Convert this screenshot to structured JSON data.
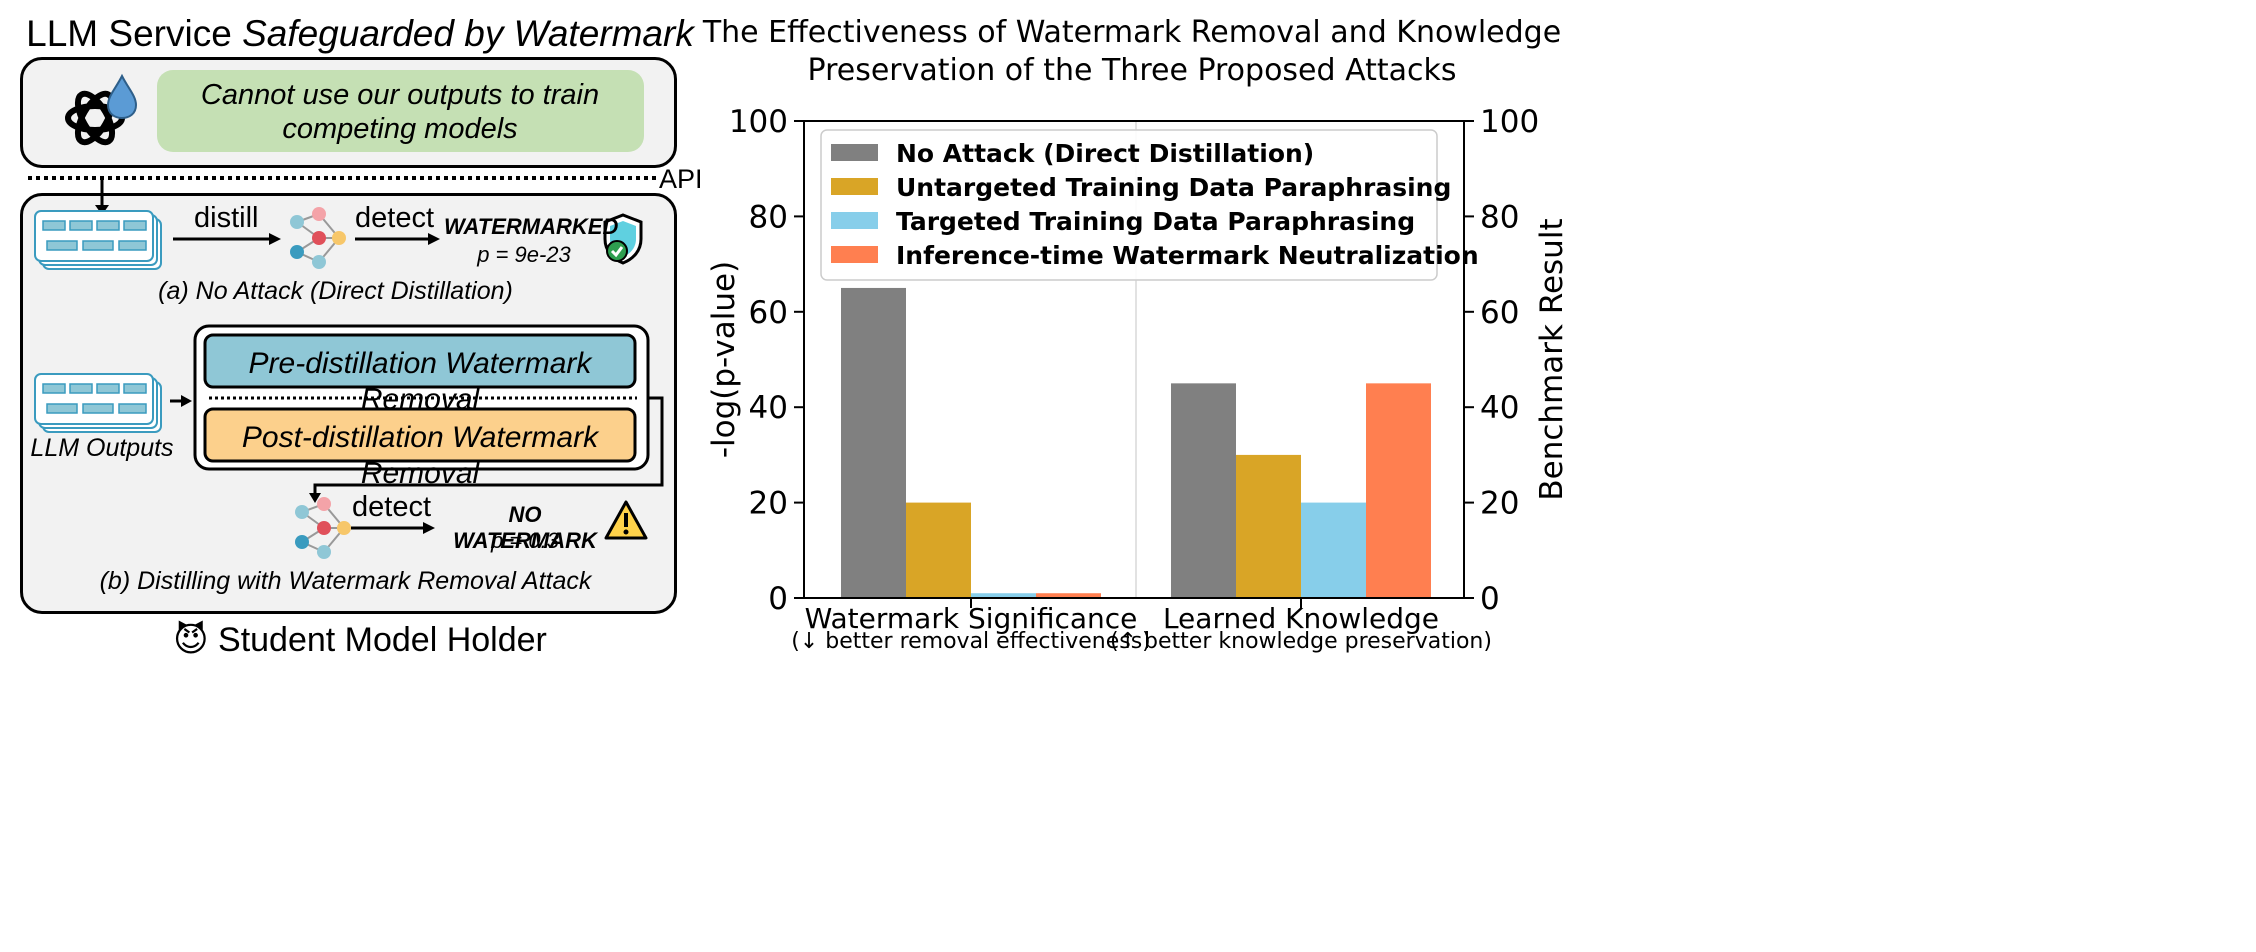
{
  "left": {
    "title_plain": "LLM Service ",
    "title_italic": "Safeguarded by Watermark",
    "policy_text": "Cannot use our outputs to train competing models",
    "api_label": "API",
    "panel_a": {
      "distill_label": "distill",
      "detect_label": "detect",
      "result_label": "WATERMARKED",
      "p_value": "p = 9e-23",
      "caption": "(a) No Attack (Direct Distillation)"
    },
    "panel_b": {
      "outputs_label": "LLM Outputs",
      "pre_removal": "Pre-distillation Watermark Removal",
      "post_removal": "Post-distillation Watermark Removal",
      "detect_label": "detect",
      "result_label": "NO WATERMARK",
      "p_value": "p = 0.3",
      "caption": "(b) Distilling with Watermark Removal Attack"
    },
    "footer_emoji": "😈",
    "footer_label": "Student Model Holder"
  },
  "chart_data": {
    "type": "bar",
    "title": "The Effectiveness of Watermark Removal and Knowledge Preservation of the Three Proposed Attacks",
    "title_lines": [
      "The Effectiveness of Watermark Removal and Knowledge",
      "Preservation of the Three Proposed Attacks"
    ],
    "categories": [
      "Watermark Significance",
      "Learned Knowledge"
    ],
    "category_notes": [
      "(↓ better removal effectiveness)",
      "(↑ better knowledge preservation)"
    ],
    "ylabel": "-log(p-value)",
    "ylabel_right": "Benchmark Result",
    "ylim": [
      0,
      100
    ],
    "yticks": [
      0,
      20,
      40,
      60,
      80,
      100
    ],
    "legend_position": "top",
    "series": [
      {
        "name": "No Attack (Direct Distillation)",
        "values": [
          65,
          45
        ],
        "color": "#808080"
      },
      {
        "name": "Untargeted Training Data Paraphrasing",
        "values": [
          20,
          30
        ],
        "color": "#d9a526"
      },
      {
        "name": "Targeted Training Data Paraphrasing",
        "values": [
          1,
          20
        ],
        "color": "#87ceea"
      },
      {
        "name": "Inference-time Watermark Neutralization",
        "values": [
          1,
          45
        ],
        "color": "#ff7f50"
      }
    ]
  },
  "colors": {
    "policy_fill": "#c5e0b4",
    "pre_fill": "#8fc7d6",
    "post_fill": "#fcd08c",
    "panel_fill": "#f2f2f2"
  }
}
